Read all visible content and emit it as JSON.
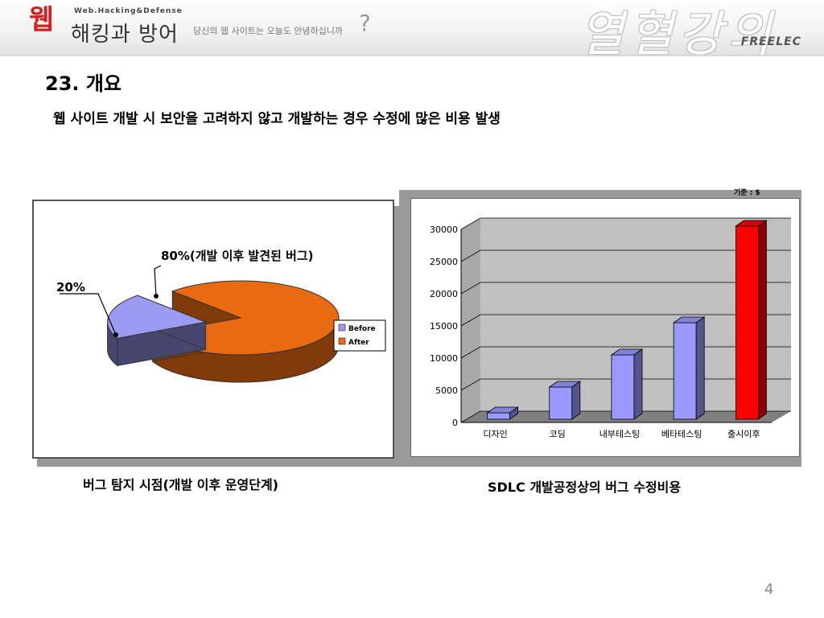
{
  "header": {
    "logo_mark": "웹",
    "logo_sub": "Web.Hacking&Defense",
    "logo_main": "해킹과 방어",
    "tagline": "당신의 웹 사이트는 오늘도 안녕하십니까",
    "tagline_mark": "?",
    "calligraphy": "열혈강의",
    "brand": "FREELEC"
  },
  "slide": {
    "title": "23. 개요",
    "bullet": "웹 사이트 개발 시 보안을 고려하지 않고 개발하는 경우 수정에 많은 비용 발생",
    "caption_left": "버그 탐지 시점(개발 이후 운영단계)",
    "caption_right": "SDLC 개발공정상의 버그 수정비용",
    "page_number": "4"
  },
  "colors": {
    "before": "#9b9bf4",
    "after": "#ea6a12",
    "bar": "#9999ff",
    "bar_highlight": "#ff0000"
  },
  "chart_data": [
    {
      "type": "pie",
      "slices": [
        {
          "label": "Before",
          "value": 20,
          "annotation": "20%"
        },
        {
          "label": "After",
          "value": 80,
          "annotation": "80%(개발 이후 발견된 버그)"
        }
      ],
      "legend": [
        "Before",
        "After"
      ],
      "legend_position": "right"
    },
    {
      "type": "bar",
      "unit_note": "기준 : $",
      "categories": [
        "디자인",
        "코딩",
        "내부테스팅",
        "베타테스팅",
        "출시이후"
      ],
      "values": [
        1000,
        5000,
        10000,
        15000,
        30000
      ],
      "ylim": [
        0,
        30000
      ],
      "yticks": [
        "0",
        "5000",
        "10000",
        "15000",
        "20000",
        "25000",
        "30000"
      ],
      "grid": true
    }
  ]
}
